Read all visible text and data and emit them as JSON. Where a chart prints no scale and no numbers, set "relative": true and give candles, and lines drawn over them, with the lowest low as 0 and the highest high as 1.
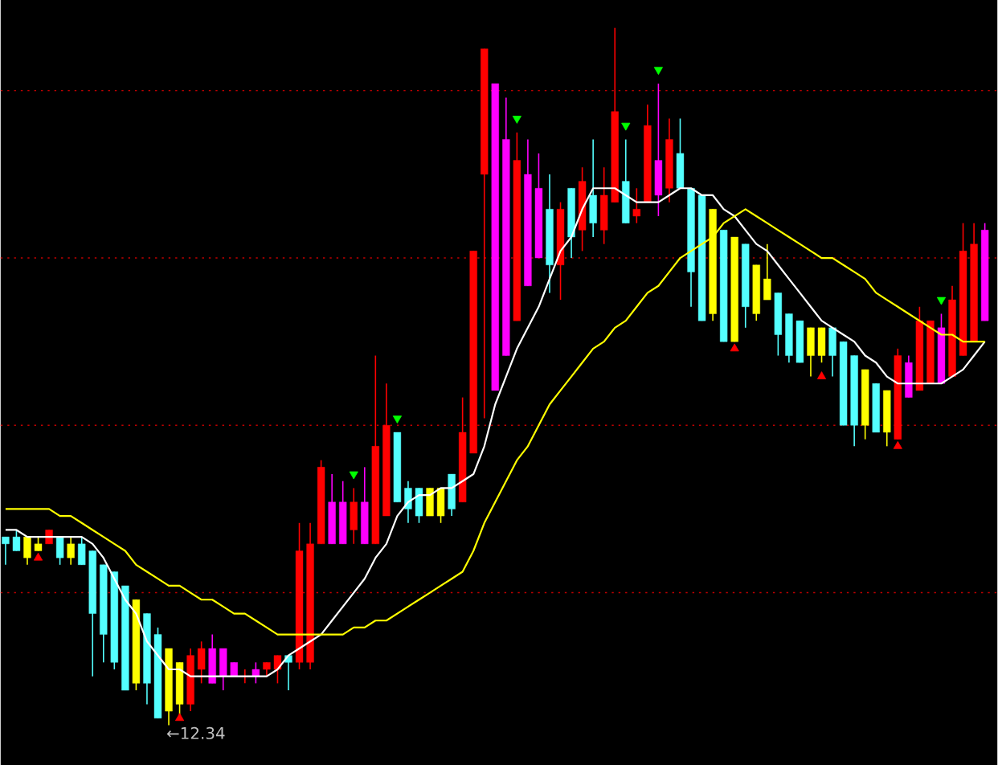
{
  "chart_data": {
    "type": "candlestick",
    "relative": true,
    "categories": [
      null,
      null,
      null,
      null,
      null,
      null,
      null,
      null,
      null,
      null,
      null,
      null,
      null,
      null,
      null,
      null,
      null,
      null,
      null,
      null,
      null,
      null,
      null,
      null,
      null,
      null,
      null,
      null,
      null,
      null,
      null,
      null,
      null,
      null,
      null,
      null,
      null,
      null,
      null,
      null,
      null,
      null,
      null,
      null,
      null,
      null,
      null,
      null,
      null,
      null,
      null,
      null,
      null,
      null,
      null,
      null,
      null,
      null,
      null,
      null,
      null,
      null,
      null,
      null,
      null,
      null,
      null,
      null,
      null,
      null,
      null,
      null,
      null,
      null,
      null,
      null,
      null,
      null,
      null,
      null,
      null,
      null,
      null,
      null,
      null,
      null,
      null,
      null,
      null,
      null,
      null
    ],
    "ohlc": [
      [
        0.27,
        0.27,
        0.23,
        0.26
      ],
      [
        0.27,
        0.28,
        0.25,
        0.25
      ],
      [
        0.27,
        0.27,
        0.23,
        0.24
      ],
      [
        0.26,
        0.27,
        0.25,
        0.25
      ],
      [
        0.26,
        0.28,
        0.26,
        0.28
      ],
      [
        0.27,
        0.27,
        0.23,
        0.24
      ],
      [
        0.26,
        0.27,
        0.23,
        0.24
      ],
      [
        0.26,
        0.27,
        0.23,
        0.23
      ],
      [
        0.25,
        0.25,
        0.07,
        0.16
      ],
      [
        0.23,
        0.23,
        0.09,
        0.13
      ],
      [
        0.22,
        0.22,
        0.08,
        0.09
      ],
      [
        0.2,
        0.2,
        0.05,
        0.05
      ],
      [
        0.18,
        0.18,
        0.05,
        0.06
      ],
      [
        0.16,
        0.16,
        0.03,
        0.06
      ],
      [
        0.13,
        0.14,
        0.01,
        0.01
      ],
      [
        0.11,
        0.11,
        0,
        0.02
      ],
      [
        0.09,
        0.09,
        0.01,
        0.03
      ],
      [
        0.03,
        0.11,
        0.02,
        0.1
      ],
      [
        0.08,
        0.12,
        0.06,
        0.11
      ],
      [
        0.11,
        0.13,
        0.06,
        0.06
      ],
      [
        0.11,
        0.11,
        0.05,
        0.07
      ],
      [
        0.09,
        0.09,
        0.07,
        0.07
      ],
      [
        0.07,
        0.08,
        0.06,
        0.07
      ],
      [
        0.08,
        0.09,
        0.06,
        0.07
      ],
      [
        0.08,
        0.09,
        0.07,
        0.09
      ],
      [
        0.08,
        0.1,
        0.06,
        0.1
      ],
      [
        0.1,
        0.1,
        0.05,
        0.09
      ],
      [
        0.09,
        0.29,
        0.08,
        0.25
      ],
      [
        0.09,
        0.29,
        0.08,
        0.26
      ],
      [
        0.26,
        0.38,
        0.26,
        0.37
      ],
      [
        0.32,
        0.36,
        0.26,
        0.26
      ],
      [
        0.32,
        0.35,
        0.26,
        0.26
      ],
      [
        0.28,
        0.34,
        0.26,
        0.32
      ],
      [
        0.32,
        0.37,
        0.26,
        0.26
      ],
      [
        0.26,
        0.53,
        0.26,
        0.4
      ],
      [
        0.3,
        0.49,
        0.3,
        0.43
      ],
      [
        0.42,
        0.42,
        0.32,
        0.32
      ],
      [
        0.34,
        0.35,
        0.29,
        0.31
      ],
      [
        0.34,
        0.34,
        0.29,
        0.3
      ],
      [
        0.34,
        0.34,
        0.3,
        0.3
      ],
      [
        0.34,
        0.34,
        0.29,
        0.3
      ],
      [
        0.36,
        0.36,
        0.3,
        0.31
      ],
      [
        0.32,
        0.47,
        0.32,
        0.42
      ],
      [
        0.39,
        0.68,
        0.39,
        0.68
      ],
      [
        0.79,
        0.97,
        0.44,
        0.97
      ],
      [
        0.92,
        0.92,
        0.48,
        0.48
      ],
      [
        0.84,
        0.9,
        0.53,
        0.53
      ],
      [
        0.58,
        0.85,
        0.58,
        0.81
      ],
      [
        0.79,
        0.84,
        0.63,
        0.63
      ],
      [
        0.77,
        0.82,
        0.67,
        0.67
      ],
      [
        0.74,
        0.79,
        0.62,
        0.66
      ],
      [
        0.66,
        0.75,
        0.61,
        0.74
      ],
      [
        0.77,
        0.77,
        0.67,
        0.7
      ],
      [
        0.71,
        0.8,
        0.68,
        0.78
      ],
      [
        0.76,
        0.84,
        0.7,
        0.72
      ],
      [
        0.71,
        0.8,
        0.69,
        0.76
      ],
      [
        0.75,
        1,
        0.75,
        0.88
      ],
      [
        0.78,
        0.84,
        0.72,
        0.72
      ],
      [
        0.73,
        0.77,
        0.72,
        0.74
      ],
      [
        0.75,
        0.89,
        0.75,
        0.86
      ],
      [
        0.81,
        0.92,
        0.73,
        0.76
      ],
      [
        0.77,
        0.87,
        0.75,
        0.84
      ],
      [
        0.82,
        0.87,
        0.77,
        0.77
      ],
      [
        0.77,
        0.77,
        0.6,
        0.65
      ],
      [
        0.76,
        0.76,
        0.58,
        0.58
      ],
      [
        0.74,
        0.74,
        0.58,
        0.59
      ],
      [
        0.71,
        0.71,
        0.55,
        0.55
      ],
      [
        0.7,
        0.7,
        0.55,
        0.55
      ],
      [
        0.69,
        0.69,
        0.57,
        0.6
      ],
      [
        0.66,
        0.66,
        0.58,
        0.59
      ],
      [
        0.64,
        0.69,
        0.61,
        0.61
      ],
      [
        0.62,
        0.62,
        0.53,
        0.56
      ],
      [
        0.59,
        0.59,
        0.52,
        0.53
      ],
      [
        0.58,
        0.58,
        0.52,
        0.52
      ],
      [
        0.57,
        0.57,
        0.5,
        0.53
      ],
      [
        0.57,
        0.57,
        0.52,
        0.53
      ],
      [
        0.57,
        0.57,
        0.5,
        0.53
      ],
      [
        0.55,
        0.55,
        0.43,
        0.43
      ],
      [
        0.53,
        0.53,
        0.4,
        0.43
      ],
      [
        0.51,
        0.51,
        0.41,
        0.43
      ],
      [
        0.49,
        0.49,
        0.42,
        0.42
      ],
      [
        0.48,
        0.48,
        0.4,
        0.42
      ],
      [
        0.41,
        0.54,
        0.41,
        0.53
      ],
      [
        0.52,
        0.53,
        0.47,
        0.47
      ],
      [
        0.48,
        0.6,
        0.48,
        0.58
      ],
      [
        0.49,
        0.58,
        0.49,
        0.58
      ],
      [
        0.57,
        0.59,
        0.49,
        0.49
      ],
      [
        0.5,
        0.63,
        0.5,
        0.61
      ],
      [
        0.53,
        0.72,
        0.53,
        0.68
      ],
      [
        0.55,
        0.72,
        0.55,
        0.69
      ],
      [
        0.71,
        0.72,
        0.58,
        0.58
      ]
    ],
    "colors": [
      "#54ffff",
      "#54ffff",
      "#ffff00",
      "#ffff00",
      "#ff0000",
      "#54ffff",
      "#ffff00",
      "#54ffff",
      "#54ffff",
      "#54ffff",
      "#54ffff",
      "#54ffff",
      "#ffff00",
      "#54ffff",
      "#54ffff",
      "#ffff00",
      "#ffff00",
      "#ff0000",
      "#ff0000",
      "#ff00ff",
      "#ff00ff",
      "#ff00ff",
      "#ff0000",
      "#ff00ff",
      "#ff0000",
      "#ff0000",
      "#54ffff",
      "#ff0000",
      "#ff0000",
      "#ff0000",
      "#ff00ff",
      "#ff00ff",
      "#ff0000",
      "#ff00ff",
      "#ff0000",
      "#ff0000",
      "#54ffff",
      "#54ffff",
      "#54ffff",
      "#ffff00",
      "#ffff00",
      "#54ffff",
      "#ff0000",
      "#ff0000",
      "#ff0000",
      "#ff00ff",
      "#ff00ff",
      "#ff0000",
      "#ff00ff",
      "#ff00ff",
      "#54ffff",
      "#ff0000",
      "#54ffff",
      "#ff0000",
      "#54ffff",
      "#ff0000",
      "#ff0000",
      "#54ffff",
      "#ff0000",
      "#ff0000",
      "#ff00ff",
      "#ff0000",
      "#54ffff",
      "#54ffff",
      "#54ffff",
      "#ffff00",
      "#54ffff",
      "#ffff00",
      "#54ffff",
      "#ffff00",
      "#ffff00",
      "#54ffff",
      "#54ffff",
      "#54ffff",
      "#ffff00",
      "#ffff00",
      "#54ffff",
      "#54ffff",
      "#54ffff",
      "#ffff00",
      "#54ffff",
      "#ffff00",
      "#ff0000",
      "#ff00ff",
      "#ff0000",
      "#ff0000",
      "#ff00ff",
      "#ff0000",
      "#ff0000",
      "#ff0000",
      "#ff00ff"
    ],
    "series": [
      {
        "type": "line",
        "color": "#ffffff",
        "line_style": "solid",
        "values": [
          0.28,
          0.28,
          0.27,
          0.27,
          0.27,
          0.27,
          0.27,
          0.27,
          0.26,
          0.24,
          0.21,
          0.18,
          0.16,
          0.12,
          0.1,
          0.08,
          0.08,
          0.07,
          0.07,
          0.07,
          0.07,
          0.07,
          0.07,
          0.07,
          0.07,
          0.08,
          0.1,
          0.11,
          0.12,
          0.13,
          0.15,
          0.17,
          0.19,
          0.21,
          0.24,
          0.26,
          0.3,
          0.32,
          0.33,
          0.33,
          0.34,
          0.34,
          0.35,
          0.36,
          0.4,
          0.46,
          0.5,
          0.54,
          0.57,
          0.6,
          0.64,
          0.68,
          0.7,
          0.74,
          0.77,
          0.77,
          0.77,
          0.76,
          0.75,
          0.75,
          0.75,
          0.76,
          0.77,
          0.77,
          0.76,
          0.76,
          0.74,
          0.73,
          0.71,
          0.69,
          0.68,
          0.66,
          0.64,
          0.62,
          0.6,
          0.58,
          0.57,
          0.56,
          0.55,
          0.53,
          0.52,
          0.5,
          0.49,
          0.49,
          0.49,
          0.49,
          0.49,
          0.5,
          0.51,
          0.53,
          0.55
        ]
      },
      {
        "type": "line",
        "color": "#ffff00",
        "line_style": "solid",
        "values": [
          0.31,
          0.31,
          0.31,
          0.31,
          0.31,
          0.3,
          0.3,
          0.29,
          0.28,
          0.27,
          0.26,
          0.25,
          0.23,
          0.22,
          0.21,
          0.2,
          0.2,
          0.19,
          0.18,
          0.18,
          0.17,
          0.16,
          0.16,
          0.15,
          0.14,
          0.13,
          0.13,
          0.13,
          0.13,
          0.13,
          0.13,
          0.13,
          0.14,
          0.14,
          0.15,
          0.15,
          0.16,
          0.17,
          0.18,
          0.19,
          0.2,
          0.21,
          0.22,
          0.25,
          0.29,
          0.32,
          0.35,
          0.38,
          0.4,
          0.43,
          0.46,
          0.48,
          0.5,
          0.52,
          0.54,
          0.55,
          0.57,
          0.58,
          0.6,
          0.62,
          0.63,
          0.65,
          0.67,
          0.68,
          0.69,
          0.7,
          0.72,
          0.73,
          0.74,
          0.73,
          0.72,
          0.71,
          0.7,
          0.69,
          0.68,
          0.67,
          0.67,
          0.66,
          0.65,
          0.64,
          0.62,
          0.61,
          0.6,
          0.59,
          0.58,
          0.57,
          0.56,
          0.56,
          0.55,
          0.55,
          0.55
        ]
      },
      {
        "type": "scatter",
        "color": "#00ff00",
        "marker": "triangle",
        "values": [
          null,
          null,
          null,
          null,
          null,
          null,
          null,
          null,
          null,
          null,
          null,
          null,
          null,
          null,
          null,
          null,
          null,
          null,
          null,
          null,
          null,
          null,
          null,
          null,
          null,
          null,
          null,
          null,
          null,
          null,
          null,
          null,
          0.36,
          null,
          null,
          null,
          0.44,
          null,
          null,
          null,
          null,
          null,
          null,
          null,
          null,
          null,
          null,
          0.87,
          null,
          null,
          null,
          null,
          null,
          null,
          null,
          null,
          null,
          0.86,
          null,
          null,
          0.94,
          null,
          null,
          null,
          null,
          null,
          null,
          null,
          null,
          null,
          null,
          null,
          null,
          null,
          null,
          null,
          null,
          null,
          null,
          null,
          null,
          null,
          null,
          null,
          null,
          null,
          0.61,
          null,
          null,
          null,
          null
        ]
      },
      {
        "type": "scatter",
        "color": "#ff0000",
        "marker": "triangle",
        "values": [
          null,
          null,
          null,
          0.24,
          null,
          null,
          null,
          null,
          null,
          null,
          null,
          null,
          null,
          null,
          null,
          null,
          0.01,
          null,
          null,
          null,
          null,
          null,
          null,
          null,
          null,
          null,
          null,
          null,
          null,
          null,
          null,
          null,
          null,
          null,
          null,
          null,
          null,
          null,
          null,
          null,
          null,
          null,
          null,
          null,
          null,
          null,
          null,
          null,
          null,
          null,
          null,
          null,
          null,
          null,
          null,
          null,
          null,
          null,
          null,
          null,
          null,
          null,
          null,
          null,
          null,
          null,
          null,
          0.54,
          null,
          null,
          null,
          null,
          null,
          null,
          null,
          0.5,
          null,
          null,
          null,
          null,
          null,
          null,
          0.4,
          null,
          null,
          null,
          null,
          null,
          null,
          null,
          null
        ]
      }
    ],
    "ref_lines": [
      {
        "axis": "y",
        "value": 0.91,
        "color": "#c00000",
        "line_style": "dotted"
      },
      {
        "axis": "y",
        "value": 0.67,
        "color": "#c00000",
        "line_style": "dotted"
      },
      {
        "axis": "y",
        "value": 0.43,
        "color": "#c00000",
        "line_style": "dotted"
      },
      {
        "axis": "y",
        "value": 0.19,
        "color": "#c00000",
        "line_style": "dotted"
      }
    ],
    "annotations": [
      "←12.34"
    ]
  }
}
